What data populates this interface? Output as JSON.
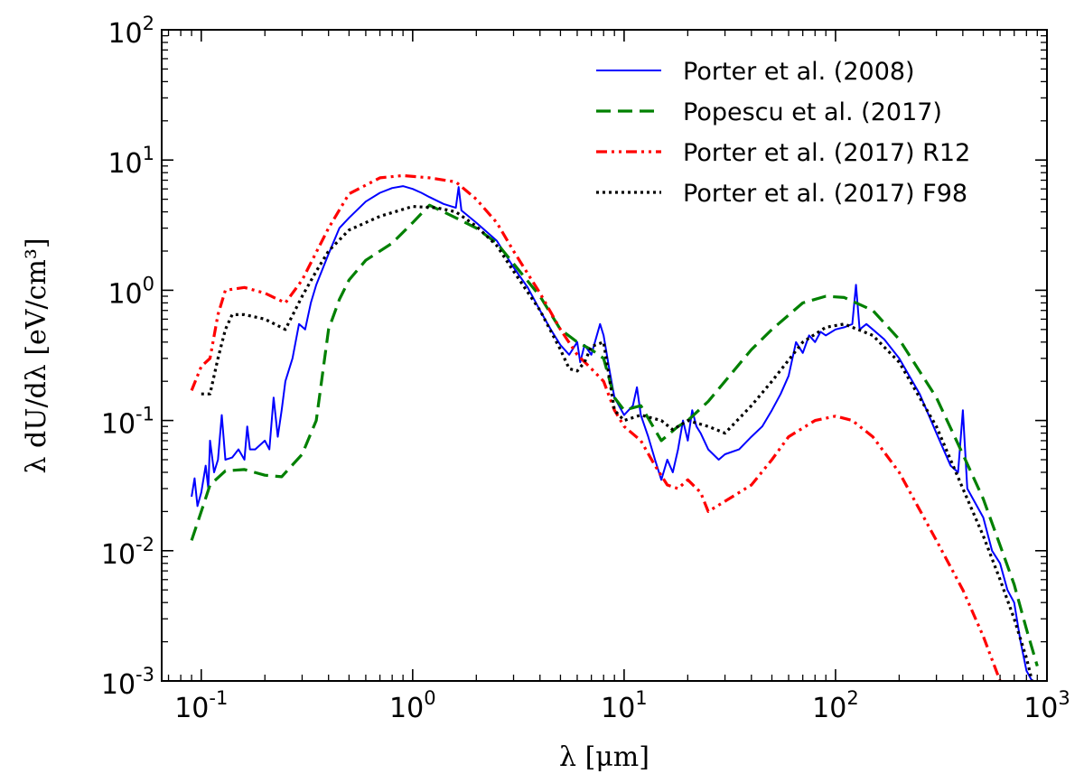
{
  "chart_data": {
    "type": "line",
    "title": "",
    "xlabel": "λ [μm]",
    "ylabel": "λ dU/dλ [eV/cm³]",
    "xscale": "log",
    "yscale": "log",
    "xlim": [
      0.065,
      1000
    ],
    "ylim": [
      0.001,
      100
    ],
    "grid": false,
    "legend_position": "top-right",
    "x_ticks": [
      {
        "value": 0.1,
        "base": "10",
        "exp": "-1"
      },
      {
        "value": 1,
        "base": "10",
        "exp": "0"
      },
      {
        "value": 10,
        "base": "10",
        "exp": "1"
      },
      {
        "value": 100,
        "base": "10",
        "exp": "2"
      },
      {
        "value": 1000,
        "base": "10",
        "exp": "3"
      }
    ],
    "y_ticks": [
      {
        "value": 0.001,
        "base": "10",
        "exp": "-3"
      },
      {
        "value": 0.01,
        "base": "10",
        "exp": "-2"
      },
      {
        "value": 0.1,
        "base": "10",
        "exp": "-1"
      },
      {
        "value": 1,
        "base": "10",
        "exp": "0"
      },
      {
        "value": 10,
        "base": "10",
        "exp": "1"
      },
      {
        "value": 100,
        "base": "10",
        "exp": "2"
      }
    ],
    "series": [
      {
        "name": "Porter et al. (2008)",
        "color": "#0000ff",
        "style": "solid",
        "points": [
          [
            0.09,
            0.026
          ],
          [
            0.093,
            0.036
          ],
          [
            0.096,
            0.022
          ],
          [
            0.1,
            0.028
          ],
          [
            0.105,
            0.045
          ],
          [
            0.108,
            0.03
          ],
          [
            0.11,
            0.07
          ],
          [
            0.115,
            0.04
          ],
          [
            0.12,
            0.05
          ],
          [
            0.125,
            0.11
          ],
          [
            0.13,
            0.05
          ],
          [
            0.14,
            0.052
          ],
          [
            0.15,
            0.06
          ],
          [
            0.16,
            0.05
          ],
          [
            0.165,
            0.09
          ],
          [
            0.17,
            0.06
          ],
          [
            0.18,
            0.06
          ],
          [
            0.19,
            0.065
          ],
          [
            0.2,
            0.07
          ],
          [
            0.21,
            0.06
          ],
          [
            0.22,
            0.15
          ],
          [
            0.23,
            0.075
          ],
          [
            0.24,
            0.12
          ],
          [
            0.25,
            0.2
          ],
          [
            0.27,
            0.3
          ],
          [
            0.29,
            0.55
          ],
          [
            0.31,
            0.5
          ],
          [
            0.33,
            0.8
          ],
          [
            0.35,
            1.1
          ],
          [
            0.4,
            1.9
          ],
          [
            0.45,
            3.0
          ],
          [
            0.5,
            3.6
          ],
          [
            0.6,
            4.8
          ],
          [
            0.7,
            5.6
          ],
          [
            0.8,
            6.1
          ],
          [
            0.9,
            6.3
          ],
          [
            1.0,
            6.0
          ],
          [
            1.1,
            5.6
          ],
          [
            1.2,
            5.2
          ],
          [
            1.4,
            4.6
          ],
          [
            1.6,
            4.3
          ],
          [
            1.65,
            6.2
          ],
          [
            1.7,
            4.1
          ],
          [
            2.0,
            3.3
          ],
          [
            2.5,
            2.4
          ],
          [
            3.0,
            1.5
          ],
          [
            3.5,
            1.05
          ],
          [
            4.0,
            0.7
          ],
          [
            4.5,
            0.5
          ],
          [
            5.0,
            0.38
          ],
          [
            5.5,
            0.32
          ],
          [
            6.0,
            0.4
          ],
          [
            6.2,
            0.28
          ],
          [
            6.5,
            0.38
          ],
          [
            7.0,
            0.32
          ],
          [
            7.7,
            0.55
          ],
          [
            8.0,
            0.45
          ],
          [
            8.5,
            0.25
          ],
          [
            9.0,
            0.15
          ],
          [
            10.0,
            0.11
          ],
          [
            10.5,
            0.12
          ],
          [
            11.0,
            0.13
          ],
          [
            11.5,
            0.18
          ],
          [
            12.0,
            0.11
          ],
          [
            13.0,
            0.075
          ],
          [
            14.0,
            0.05
          ],
          [
            15.0,
            0.035
          ],
          [
            16.0,
            0.05
          ],
          [
            17.0,
            0.04
          ],
          [
            18.0,
            0.06
          ],
          [
            19.0,
            0.1
          ],
          [
            20.0,
            0.07
          ],
          [
            21.0,
            0.12
          ],
          [
            22.0,
            0.09
          ],
          [
            23.0,
            0.08
          ],
          [
            25.0,
            0.06
          ],
          [
            28.0,
            0.05
          ],
          [
            30.0,
            0.055
          ],
          [
            35.0,
            0.06
          ],
          [
            40.0,
            0.075
          ],
          [
            45.0,
            0.09
          ],
          [
            50.0,
            0.12
          ],
          [
            55.0,
            0.16
          ],
          [
            60.0,
            0.22
          ],
          [
            65.0,
            0.4
          ],
          [
            70.0,
            0.33
          ],
          [
            75.0,
            0.45
          ],
          [
            80.0,
            0.4
          ],
          [
            85.0,
            0.48
          ],
          [
            90.0,
            0.45
          ],
          [
            100.0,
            0.5
          ],
          [
            110.0,
            0.52
          ],
          [
            120.0,
            0.55
          ],
          [
            125.0,
            1.1
          ],
          [
            130.0,
            0.5
          ],
          [
            140.0,
            0.55
          ],
          [
            150.0,
            0.5
          ],
          [
            170.0,
            0.42
          ],
          [
            200.0,
            0.3
          ],
          [
            250.0,
            0.16
          ],
          [
            300.0,
            0.08
          ],
          [
            350.0,
            0.045
          ],
          [
            380.0,
            0.04
          ],
          [
            400.0,
            0.12
          ],
          [
            420.0,
            0.03
          ],
          [
            500.0,
            0.018
          ],
          [
            550.0,
            0.01
          ],
          [
            600.0,
            0.008
          ],
          [
            650.0,
            0.005
          ],
          [
            700.0,
            0.004
          ],
          [
            750.0,
            0.002
          ],
          [
            800.0,
            0.0012
          ],
          [
            850.0,
            0.001
          ]
        ]
      },
      {
        "name": "Popescu et al. (2017)",
        "color": "#008000",
        "style": "dashed",
        "points": [
          [
            0.09,
            0.012
          ],
          [
            0.1,
            0.02
          ],
          [
            0.11,
            0.032
          ],
          [
            0.13,
            0.041
          ],
          [
            0.16,
            0.042
          ],
          [
            0.2,
            0.038
          ],
          [
            0.24,
            0.037
          ],
          [
            0.3,
            0.055
          ],
          [
            0.35,
            0.1
          ],
          [
            0.4,
            0.5
          ],
          [
            0.45,
            0.85
          ],
          [
            0.5,
            1.2
          ],
          [
            0.6,
            1.7
          ],
          [
            0.8,
            2.3
          ],
          [
            1.0,
            3.3
          ],
          [
            1.2,
            4.5
          ],
          [
            1.4,
            4.0
          ],
          [
            1.6,
            3.6
          ],
          [
            2.0,
            3.0
          ],
          [
            2.5,
            2.3
          ],
          [
            3.0,
            1.6
          ],
          [
            4.0,
            0.9
          ],
          [
            5.0,
            0.5
          ],
          [
            6.0,
            0.4
          ],
          [
            7.0,
            0.35
          ],
          [
            8.0,
            0.3
          ],
          [
            9.0,
            0.15
          ],
          [
            10.0,
            0.12
          ],
          [
            12.0,
            0.13
          ],
          [
            15.0,
            0.07
          ],
          [
            18.0,
            0.09
          ],
          [
            20.0,
            0.1
          ],
          [
            25.0,
            0.14
          ],
          [
            30.0,
            0.2
          ],
          [
            40.0,
            0.35
          ],
          [
            50.0,
            0.5
          ],
          [
            70.0,
            0.8
          ],
          [
            90.0,
            0.9
          ],
          [
            110.0,
            0.88
          ],
          [
            150.0,
            0.7
          ],
          [
            200.0,
            0.42
          ],
          [
            300.0,
            0.15
          ],
          [
            400.0,
            0.055
          ],
          [
            500.0,
            0.025
          ],
          [
            600.0,
            0.011
          ],
          [
            700.0,
            0.0055
          ],
          [
            800.0,
            0.0025
          ],
          [
            900.0,
            0.0013
          ]
        ]
      },
      {
        "name": "Porter et al. (2017) R12",
        "color": "#ff0000",
        "style": "dashdotdot",
        "points": [
          [
            0.09,
            0.17
          ],
          [
            0.1,
            0.26
          ],
          [
            0.11,
            0.3
          ],
          [
            0.12,
            0.65
          ],
          [
            0.13,
            1.0
          ],
          [
            0.16,
            1.05
          ],
          [
            0.2,
            0.95
          ],
          [
            0.25,
            0.8
          ],
          [
            0.3,
            1.2
          ],
          [
            0.4,
            3.0
          ],
          [
            0.5,
            5.5
          ],
          [
            0.7,
            7.3
          ],
          [
            0.9,
            7.6
          ],
          [
            1.2,
            7.3
          ],
          [
            1.6,
            6.8
          ],
          [
            2.0,
            5.0
          ],
          [
            2.5,
            3.3
          ],
          [
            3.0,
            2.0
          ],
          [
            4.0,
            0.95
          ],
          [
            5.0,
            0.5
          ],
          [
            6.0,
            0.32
          ],
          [
            7.0,
            0.25
          ],
          [
            8.0,
            0.2
          ],
          [
            9.0,
            0.12
          ],
          [
            10.0,
            0.09
          ],
          [
            12.0,
            0.07
          ],
          [
            14.0,
            0.045
          ],
          [
            16.0,
            0.032
          ],
          [
            18.0,
            0.03
          ],
          [
            20.0,
            0.035
          ],
          [
            23.0,
            0.028
          ],
          [
            25.0,
            0.02
          ],
          [
            30.0,
            0.024
          ],
          [
            40.0,
            0.032
          ],
          [
            50.0,
            0.05
          ],
          [
            60.0,
            0.075
          ],
          [
            80.0,
            0.1
          ],
          [
            100.0,
            0.108
          ],
          [
            120.0,
            0.1
          ],
          [
            150.0,
            0.075
          ],
          [
            200.0,
            0.04
          ],
          [
            300.0,
            0.012
          ],
          [
            400.0,
            0.005
          ],
          [
            500.0,
            0.0022
          ],
          [
            600.0,
            0.001
          ]
        ]
      },
      {
        "name": "Porter et al. (2017) F98",
        "color": "#000000",
        "style": "dotted",
        "points": [
          [
            0.1,
            0.16
          ],
          [
            0.11,
            0.16
          ],
          [
            0.12,
            0.3
          ],
          [
            0.13,
            0.5
          ],
          [
            0.14,
            0.65
          ],
          [
            0.16,
            0.65
          ],
          [
            0.2,
            0.6
          ],
          [
            0.25,
            0.5
          ],
          [
            0.3,
            0.9
          ],
          [
            0.35,
            1.4
          ],
          [
            0.4,
            2.0
          ],
          [
            0.5,
            2.9
          ],
          [
            0.7,
            3.7
          ],
          [
            1.0,
            4.4
          ],
          [
            1.3,
            4.3
          ],
          [
            1.6,
            4.0
          ],
          [
            2.0,
            3.1
          ],
          [
            2.5,
            2.2
          ],
          [
            3.0,
            1.4
          ],
          [
            4.0,
            0.7
          ],
          [
            5.0,
            0.35
          ],
          [
            5.5,
            0.25
          ],
          [
            6.0,
            0.24
          ],
          [
            6.5,
            0.28
          ],
          [
            7.0,
            0.37
          ],
          [
            8.0,
            0.4
          ],
          [
            9.0,
            0.12
          ],
          [
            10.0,
            0.1
          ],
          [
            12.0,
            0.11
          ],
          [
            15.0,
            0.1
          ],
          [
            17.0,
            0.085
          ],
          [
            20.0,
            0.1
          ],
          [
            25.0,
            0.09
          ],
          [
            30.0,
            0.08
          ],
          [
            40.0,
            0.13
          ],
          [
            50.0,
            0.2
          ],
          [
            70.0,
            0.4
          ],
          [
            90.0,
            0.52
          ],
          [
            110.0,
            0.55
          ],
          [
            150.0,
            0.45
          ],
          [
            200.0,
            0.28
          ],
          [
            300.0,
            0.09
          ],
          [
            400.0,
            0.03
          ],
          [
            500.0,
            0.013
          ],
          [
            600.0,
            0.006
          ],
          [
            700.0,
            0.003
          ],
          [
            800.0,
            0.0015
          ],
          [
            850.0,
            0.001
          ]
        ]
      }
    ]
  }
}
